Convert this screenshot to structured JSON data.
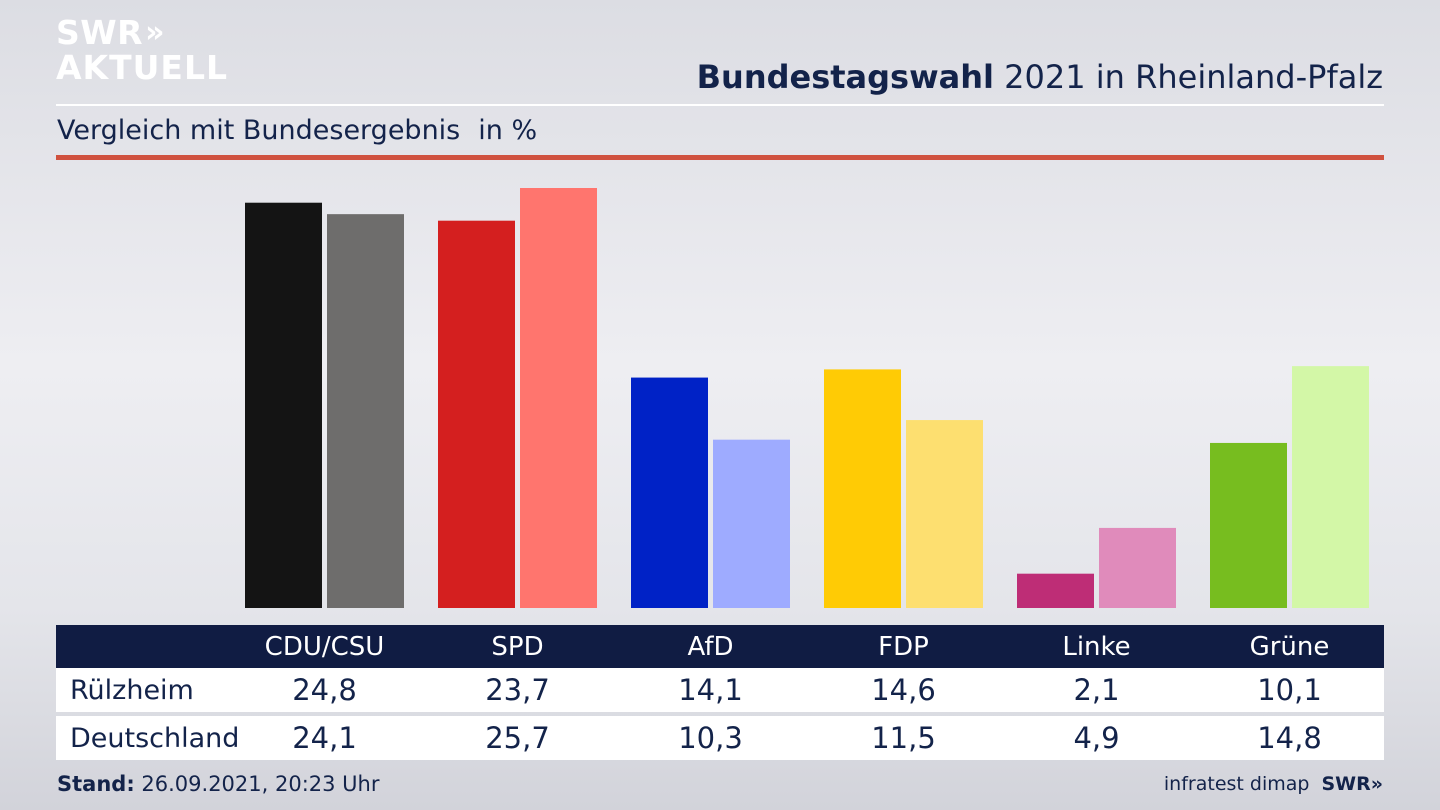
{
  "logo": {
    "line1": "SWR",
    "arrows": "»",
    "line2": "AKTUELL"
  },
  "title": {
    "bold": "Bundestagswahl",
    "rest": " 2021 in Rheinland-Pfalz"
  },
  "subtitle": {
    "text": "Vergleich mit Bundesergebnis",
    "unit": "in %"
  },
  "table": {
    "row_labels": [
      "Rülzheim",
      "Deutschland"
    ]
  },
  "footer": {
    "stand_label": "Stand:",
    "stand_value": " 26.09.2021, 20:23 Uhr",
    "source": "infratest dimap",
    "brand": "SWR»"
  },
  "chart_data": {
    "type": "bar",
    "title": "Bundestagswahl 2021 in Rheinland-Pfalz",
    "subtitle": "Vergleich mit Bundesergebnis",
    "unit": "in %",
    "categories": [
      "CDU/CSU",
      "SPD",
      "AfD",
      "FDP",
      "Linke",
      "Grüne"
    ],
    "series": [
      {
        "name": "Rülzheim",
        "values": [
          24.8,
          23.7,
          14.1,
          14.6,
          2.1,
          10.1
        ],
        "labels": [
          "24,8",
          "23,7",
          "14,1",
          "14,6",
          "2,1",
          "10,1"
        ]
      },
      {
        "name": "Deutschland",
        "values": [
          24.1,
          25.7,
          10.3,
          11.5,
          4.9,
          14.8
        ],
        "labels": [
          "24,1",
          "25,7",
          "10,3",
          "11,5",
          "4,9",
          "14,8"
        ]
      }
    ],
    "colors_local": [
      "#141414",
      "#d41f1f",
      "#0022c6",
      "#ffcb05",
      "#be2d76",
      "#77bd1f"
    ],
    "colors_national": [
      "#6e6d6c",
      "#ff756e",
      "#9eabff",
      "#fddf70",
      "#e08bbb",
      "#d3f7a7"
    ],
    "ylim": [
      0,
      25.7
    ],
    "grid": false
  }
}
